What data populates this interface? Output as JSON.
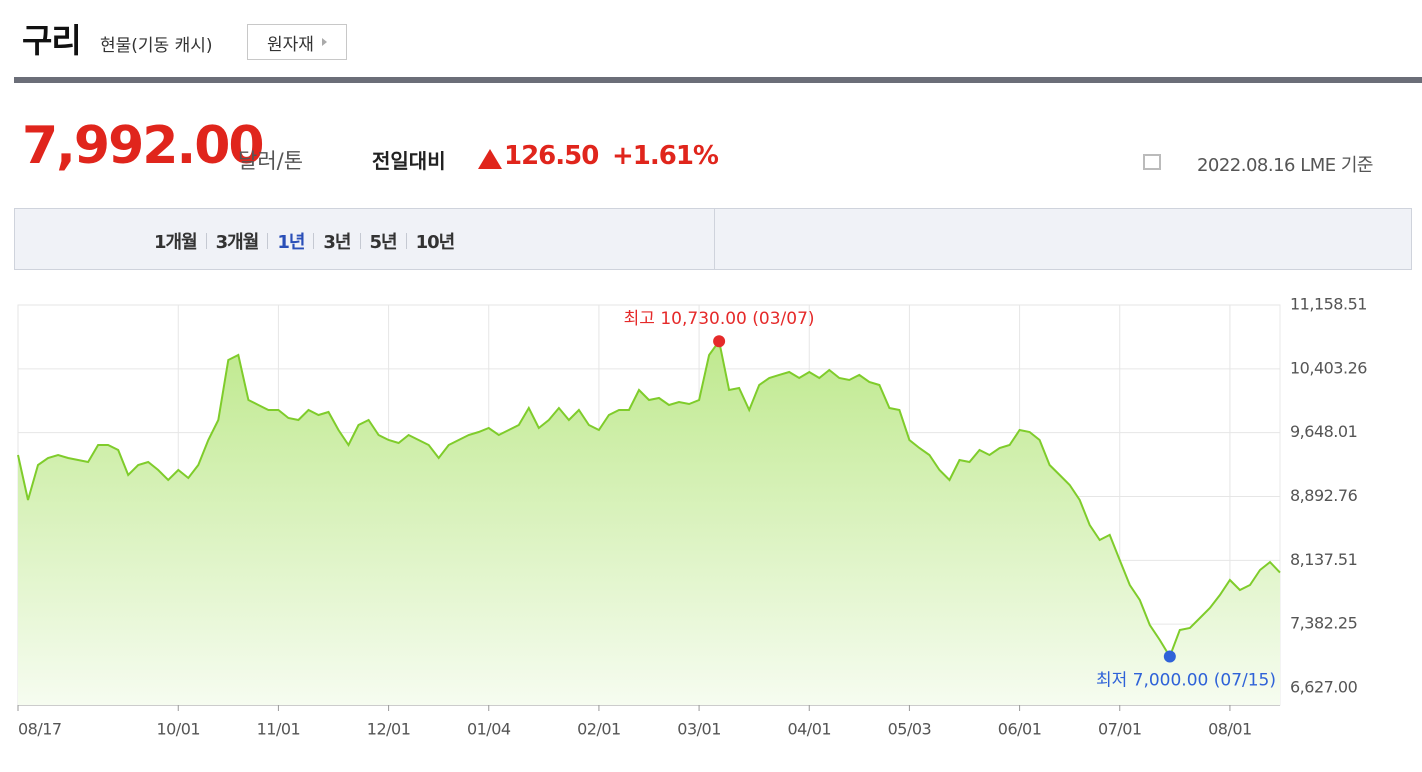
{
  "header": {
    "title": "구리",
    "subtitle": "현물(기동 캐시)",
    "button": "원자재"
  },
  "price": {
    "value": "7,992.00",
    "unit": "달러/톤",
    "change_label": "전일대비",
    "change": "126.50",
    "change_pct": "+1.61%",
    "date": "2022.08.16 LME 기준"
  },
  "tabs": {
    "items": [
      "1개월",
      "3개월",
      "1년",
      "3년",
      "5년",
      "10년"
    ],
    "active": 2
  },
  "chart_data": {
    "type": "area",
    "color": "#7fcc2b",
    "grid": true,
    "high_label": "최고 10,730.00 (03/07)",
    "low_label": "최저 7,000.00 (07/15)",
    "high_color": "#e52a2a",
    "low_color": "#2f62d8",
    "categories": [
      "08/17",
      null,
      null,
      null,
      null,
      null,
      null,
      null,
      null,
      null,
      null,
      null,
      null,
      null,
      null,
      null,
      "10/01",
      null,
      null,
      null,
      null,
      null,
      null,
      null,
      null,
      null,
      "11/01",
      null,
      null,
      null,
      null,
      null,
      null,
      null,
      null,
      null,
      null,
      "12/01",
      null,
      null,
      null,
      null,
      null,
      null,
      null,
      null,
      null,
      "01/04",
      null,
      null,
      null,
      null,
      null,
      null,
      null,
      null,
      null,
      null,
      "02/01",
      null,
      null,
      null,
      null,
      null,
      null,
      null,
      null,
      null,
      "03/01",
      null,
      null,
      null,
      null,
      null,
      null,
      null,
      null,
      null,
      null,
      "04/01",
      null,
      null,
      null,
      null,
      null,
      null,
      null,
      null,
      null,
      "05/03",
      null,
      null,
      null,
      null,
      null,
      null,
      null,
      null,
      null,
      null,
      "06/01",
      null,
      null,
      null,
      null,
      null,
      null,
      null,
      null,
      null,
      "07/01",
      null,
      null,
      null,
      null,
      null,
      null,
      null,
      null,
      null,
      null,
      "08/01",
      null,
      null,
      null,
      null,
      null
    ],
    "values": [
      9384,
      8851,
      9265,
      9348,
      9384,
      9348,
      9325,
      9301,
      9502,
      9502,
      9443,
      9147,
      9265,
      9301,
      9206,
      9088,
      9206,
      9112,
      9265,
      9561,
      9798,
      10508,
      10567,
      10035,
      9975,
      9916,
      9916,
      9822,
      9798,
      9916,
      9857,
      9893,
      9680,
      9502,
      9739,
      9798,
      9621,
      9561,
      9526,
      9621,
      9561,
      9502,
      9348,
      9502,
      9561,
      9621,
      9656,
      9703,
      9621,
      9680,
      9739,
      9940,
      9703,
      9798,
      9940,
      9798,
      9916,
      9739,
      9680,
      9857,
      9916,
      9916,
      10153,
      10035,
      10058,
      9975,
      10011,
      9987,
      10035,
      10567,
      10730,
      10153,
      10177,
      9916,
      10212,
      10295,
      10331,
      10366,
      10295,
      10366,
      10295,
      10390,
      10295,
      10271,
      10331,
      10248,
      10212,
      9940,
      9916,
      9561,
      9467,
      9384,
      9206,
      9088,
      9325,
      9301,
      9443,
      9384,
      9467,
      9502,
      9680,
      9656,
      9561,
      9265,
      9147,
      9029,
      8851,
      8556,
      8378,
      8438,
      8141,
      7846,
      7668,
      7372,
      7195,
      7000,
      7313,
      7337,
      7455,
      7574,
      7727,
      7905,
      7787,
      7846,
      8023,
      8117,
      7992
    ],
    "ylim": [
      6426,
      11158.51
    ],
    "yticks": [
      {
        "value": 6627.0,
        "label": "6,627.00"
      },
      {
        "value": 7382.25,
        "label": "7,382.25"
      },
      {
        "value": 8137.51,
        "label": "8,137.51"
      },
      {
        "value": 8892.76,
        "label": "8,892.76"
      },
      {
        "value": 9648.01,
        "label": "9,648.01"
      },
      {
        "value": 10403.26,
        "label": "10,403.26"
      },
      {
        "value": 11158.51,
        "label": "11,158.51"
      }
    ]
  }
}
